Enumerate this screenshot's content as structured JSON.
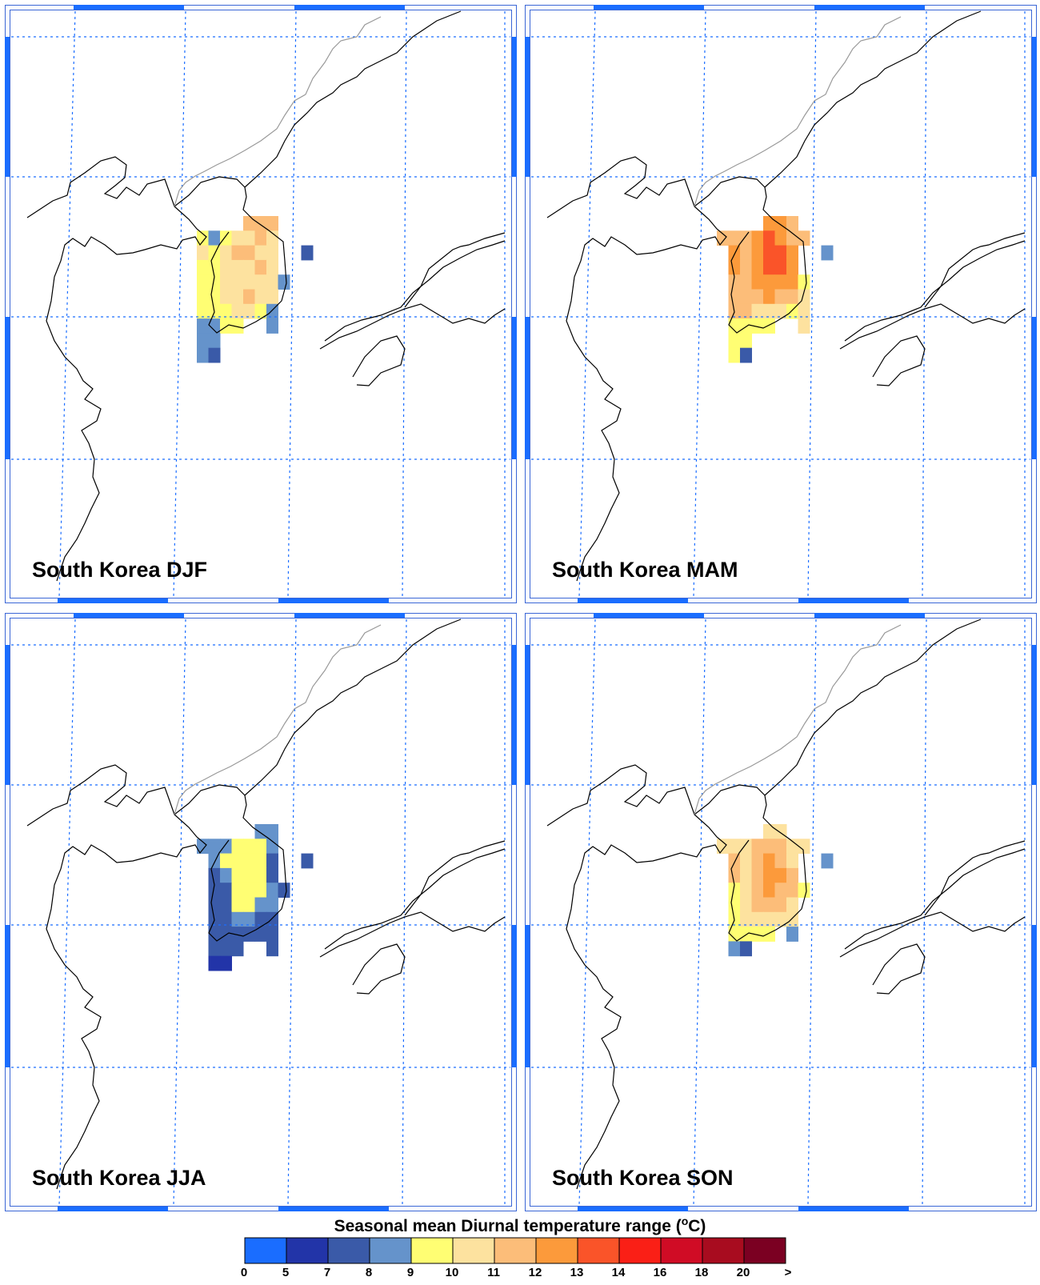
{
  "panels": [
    {
      "title": "South Korea DJF",
      "season": "DJF"
    },
    {
      "title": "South Korea MAM",
      "season": "MAM"
    },
    {
      "title": "South Korea JJA",
      "season": "JJA"
    },
    {
      "title": "South Korea SON",
      "season": "SON"
    }
  ],
  "legend": {
    "title_prefix": "Seasonal mean Diurnal temperature range (",
    "title_sup": "o",
    "title_suffix": "C)",
    "bins": [
      {
        "color": "#1a6dff"
      },
      {
        "color": "#2234a8"
      },
      {
        "color": "#3a5aa8"
      },
      {
        "color": "#6593cb"
      },
      {
        "color": "#fffe73"
      },
      {
        "color": "#fde29f"
      },
      {
        "color": "#fcbd79"
      },
      {
        "color": "#fc9a3b"
      },
      {
        "color": "#fa5429"
      },
      {
        "color": "#fa1f16"
      },
      {
        "color": "#d00c25"
      },
      {
        "color": "#a80c1f"
      },
      {
        "color": "#7b0022"
      }
    ],
    "tick_labels": [
      "0",
      "5",
      "7",
      "8",
      "9",
      "10",
      "11",
      "12",
      "13",
      "14",
      "16",
      "18",
      "20",
      ">"
    ]
  },
  "chart_data": {
    "type": "heatmap",
    "title": "Seasonal mean Diurnal temperature range (oC)",
    "map_region": "Korean Peninsula",
    "grid_lines": "dotted",
    "levels": [
      0,
      5,
      7,
      8,
      9,
      10,
      11,
      12,
      13,
      14,
      16,
      18,
      20
    ],
    "colors": [
      "#1a6dff",
      "#2234a8",
      "#3a5aa8",
      "#6593cb",
      "#fffe73",
      "#fde29f",
      "#fcbd79",
      "#fc9a3b",
      "#fa5429",
      "#fa1f16",
      "#d00c25",
      "#a80c1f",
      "#7b0022"
    ],
    "note": "cells: [row, col, value] on the model grid covering South Korea",
    "seasons": {
      "DJF": [
        [
          0,
          4,
          11.5
        ],
        [
          0,
          5,
          11.5
        ],
        [
          0,
          6,
          11.5
        ],
        [
          1,
          0,
          9.5
        ],
        [
          1,
          1,
          8.5
        ],
        [
          1,
          2,
          9.5
        ],
        [
          1,
          3,
          10.5
        ],
        [
          1,
          4,
          10.5
        ],
        [
          1,
          5,
          11.5
        ],
        [
          1,
          6,
          10.5
        ],
        [
          2,
          0,
          10.5
        ],
        [
          2,
          1,
          9.5
        ],
        [
          2,
          2,
          10.5
        ],
        [
          2,
          3,
          11.5
        ],
        [
          2,
          4,
          11.5
        ],
        [
          2,
          5,
          10.5
        ],
        [
          2,
          6,
          10.5
        ],
        [
          2,
          9,
          7.5
        ],
        [
          3,
          0,
          9.5
        ],
        [
          3,
          1,
          9.5
        ],
        [
          3,
          2,
          10.5
        ],
        [
          3,
          3,
          10.5
        ],
        [
          3,
          4,
          10.5
        ],
        [
          3,
          5,
          11.5
        ],
        [
          3,
          6,
          10.5
        ],
        [
          4,
          0,
          9.5
        ],
        [
          4,
          1,
          9.5
        ],
        [
          4,
          2,
          10.5
        ],
        [
          4,
          3,
          10.5
        ],
        [
          4,
          4,
          10.5
        ],
        [
          4,
          5,
          10.5
        ],
        [
          4,
          6,
          10.5
        ],
        [
          4,
          7,
          8.5
        ],
        [
          5,
          0,
          9.5
        ],
        [
          5,
          1,
          9.5
        ],
        [
          5,
          2,
          10.5
        ],
        [
          5,
          3,
          10.5
        ],
        [
          5,
          4,
          11.5
        ],
        [
          5,
          5,
          10.5
        ],
        [
          5,
          6,
          10.5
        ],
        [
          6,
          0,
          9.5
        ],
        [
          6,
          1,
          9.5
        ],
        [
          6,
          2,
          9.5
        ],
        [
          6,
          3,
          10.5
        ],
        [
          6,
          4,
          10.5
        ],
        [
          6,
          5,
          9.5
        ],
        [
          6,
          6,
          8.5
        ],
        [
          7,
          0,
          8.5
        ],
        [
          7,
          1,
          8.5
        ],
        [
          7,
          2,
          9.5
        ],
        [
          7,
          3,
          9.5
        ],
        [
          7,
          6,
          8.5
        ],
        [
          8,
          0,
          8.5
        ],
        [
          8,
          1,
          8.5
        ],
        [
          9,
          0,
          8.5
        ],
        [
          9,
          1,
          7.5
        ]
      ],
      "MAM": [
        [
          0,
          4,
          12.5
        ],
        [
          0,
          5,
          12.5
        ],
        [
          0,
          6,
          11.5
        ],
        [
          1,
          0,
          11.5
        ],
        [
          1,
          1,
          11.5
        ],
        [
          1,
          2,
          11.5
        ],
        [
          1,
          3,
          12.5
        ],
        [
          1,
          4,
          13.5
        ],
        [
          1,
          5,
          12.5
        ],
        [
          1,
          6,
          11.5
        ],
        [
          1,
          7,
          11.5
        ],
        [
          2,
          1,
          12.5
        ],
        [
          2,
          2,
          11.5
        ],
        [
          2,
          3,
          12.5
        ],
        [
          2,
          4,
          13.5
        ],
        [
          2,
          5,
          13.5
        ],
        [
          2,
          6,
          12.5
        ],
        [
          2,
          9,
          8.5
        ],
        [
          3,
          1,
          12.5
        ],
        [
          3,
          2,
          11.5
        ],
        [
          3,
          3,
          12.5
        ],
        [
          3,
          4,
          13.5
        ],
        [
          3,
          5,
          13.5
        ],
        [
          3,
          6,
          12.5
        ],
        [
          4,
          1,
          11.5
        ],
        [
          4,
          2,
          11.5
        ],
        [
          4,
          3,
          12.5
        ],
        [
          4,
          4,
          12.5
        ],
        [
          4,
          5,
          12.5
        ],
        [
          4,
          6,
          12.5
        ],
        [
          4,
          7,
          9.5
        ],
        [
          5,
          1,
          11.5
        ],
        [
          5,
          2,
          11.5
        ],
        [
          5,
          3,
          11.5
        ],
        [
          5,
          4,
          12.5
        ],
        [
          5,
          5,
          11.5
        ],
        [
          5,
          6,
          11.5
        ],
        [
          5,
          7,
          10.5
        ],
        [
          6,
          1,
          11.5
        ],
        [
          6,
          2,
          11.5
        ],
        [
          6,
          3,
          10.5
        ],
        [
          6,
          4,
          10.5
        ],
        [
          6,
          5,
          10.5
        ],
        [
          6,
          6,
          9.5
        ],
        [
          6,
          7,
          10.5
        ],
        [
          7,
          1,
          9.5
        ],
        [
          7,
          2,
          9.5
        ],
        [
          7,
          3,
          9.5
        ],
        [
          7,
          4,
          9.5
        ],
        [
          7,
          7,
          10.5
        ],
        [
          8,
          1,
          9.5
        ],
        [
          8,
          2,
          9.5
        ],
        [
          9,
          1,
          9.5
        ],
        [
          9,
          2,
          7.5
        ]
      ],
      "JJA": [
        [
          0,
          5,
          8.5
        ],
        [
          0,
          6,
          8.5
        ],
        [
          1,
          0,
          8.5
        ],
        [
          1,
          1,
          8.5
        ],
        [
          1,
          2,
          8.5
        ],
        [
          1,
          3,
          9.5
        ],
        [
          1,
          4,
          9.5
        ],
        [
          1,
          5,
          9.5
        ],
        [
          1,
          6,
          8.5
        ],
        [
          2,
          1,
          8.5
        ],
        [
          2,
          2,
          9.5
        ],
        [
          2,
          3,
          9.5
        ],
        [
          2,
          4,
          9.5
        ],
        [
          2,
          5,
          9.5
        ],
        [
          2,
          6,
          7.5
        ],
        [
          2,
          9,
          7.5
        ],
        [
          3,
          1,
          7.5
        ],
        [
          3,
          2,
          8.5
        ],
        [
          3,
          3,
          9.5
        ],
        [
          3,
          4,
          9.5
        ],
        [
          3,
          5,
          9.5
        ],
        [
          3,
          6,
          7.5
        ],
        [
          4,
          1,
          7.5
        ],
        [
          4,
          2,
          7.5
        ],
        [
          4,
          3,
          9.5
        ],
        [
          4,
          4,
          9.5
        ],
        [
          4,
          5,
          9.5
        ],
        [
          4,
          6,
          8.5
        ],
        [
          4,
          7,
          7.5
        ],
        [
          5,
          1,
          7.5
        ],
        [
          5,
          2,
          7.5
        ],
        [
          5,
          3,
          9.5
        ],
        [
          5,
          4,
          9.5
        ],
        [
          5,
          5,
          8.5
        ],
        [
          5,
          6,
          8.5
        ],
        [
          6,
          1,
          7.5
        ],
        [
          6,
          2,
          7.5
        ],
        [
          6,
          3,
          8.5
        ],
        [
          6,
          4,
          8.5
        ],
        [
          6,
          5,
          7.5
        ],
        [
          6,
          6,
          7.5
        ],
        [
          7,
          1,
          7.5
        ],
        [
          7,
          2,
          7.5
        ],
        [
          7,
          3,
          7.5
        ],
        [
          7,
          4,
          7.5
        ],
        [
          7,
          5,
          7.5
        ],
        [
          7,
          6,
          7.5
        ],
        [
          8,
          1,
          7.5
        ],
        [
          8,
          2,
          7.5
        ],
        [
          8,
          3,
          7.5
        ],
        [
          8,
          6,
          7.5
        ],
        [
          9,
          1,
          6.0
        ],
        [
          9,
          2,
          6.0
        ]
      ],
      "SON": [
        [
          0,
          4,
          10.5
        ],
        [
          0,
          5,
          10.5
        ],
        [
          1,
          0,
          10.5
        ],
        [
          1,
          1,
          10.5
        ],
        [
          1,
          2,
          10.5
        ],
        [
          1,
          3,
          11.5
        ],
        [
          1,
          4,
          11.5
        ],
        [
          1,
          5,
          11.5
        ],
        [
          1,
          6,
          10.5
        ],
        [
          1,
          7,
          10.5
        ],
        [
          2,
          1,
          11.5
        ],
        [
          2,
          2,
          10.5
        ],
        [
          2,
          3,
          11.5
        ],
        [
          2,
          4,
          12.5
        ],
        [
          2,
          5,
          11.5
        ],
        [
          2,
          6,
          10.5
        ],
        [
          2,
          9,
          8.5
        ],
        [
          3,
          1,
          11.5
        ],
        [
          3,
          2,
          10.5
        ],
        [
          3,
          3,
          11.5
        ],
        [
          3,
          4,
          12.5
        ],
        [
          3,
          5,
          12.5
        ],
        [
          3,
          6,
          11.5
        ],
        [
          4,
          1,
          9.5
        ],
        [
          4,
          2,
          10.5
        ],
        [
          4,
          3,
          11.5
        ],
        [
          4,
          4,
          12.5
        ],
        [
          4,
          5,
          11.5
        ],
        [
          4,
          6,
          11.5
        ],
        [
          4,
          7,
          9.5
        ],
        [
          5,
          1,
          9.5
        ],
        [
          5,
          2,
          10.5
        ],
        [
          5,
          3,
          11.5
        ],
        [
          5,
          4,
          11.5
        ],
        [
          5,
          5,
          11.5
        ],
        [
          5,
          6,
          10.5
        ],
        [
          6,
          1,
          9.5
        ],
        [
          6,
          2,
          10.5
        ],
        [
          6,
          3,
          10.5
        ],
        [
          6,
          4,
          10.5
        ],
        [
          6,
          5,
          10.5
        ],
        [
          6,
          6,
          10.5
        ],
        [
          7,
          1,
          9.5
        ],
        [
          7,
          2,
          9.5
        ],
        [
          7,
          3,
          9.5
        ],
        [
          7,
          4,
          9.5
        ],
        [
          7,
          6,
          8.5
        ],
        [
          8,
          1,
          8.5
        ],
        [
          8,
          2,
          7.5
        ]
      ]
    }
  }
}
